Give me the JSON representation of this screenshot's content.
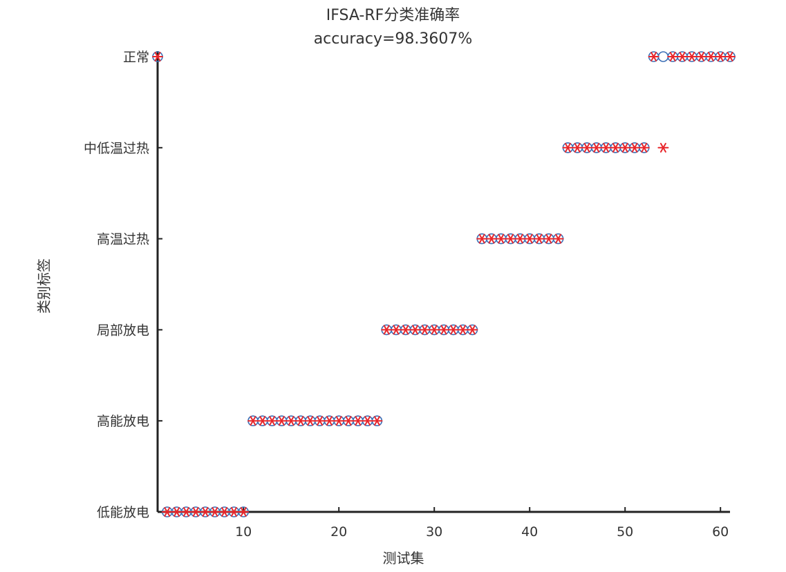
{
  "chart_data": {
    "type": "scatter",
    "title": "IFSA-RF分类准确率",
    "subtitle": "accuracy=98.3607%",
    "xlabel": "测试集",
    "ylabel": "类别标签",
    "xlim": [
      1,
      61
    ],
    "x_ticks": [
      10,
      20,
      30,
      40,
      50,
      60
    ],
    "y_categories": [
      "低能放电",
      "高能放电",
      "局部放电",
      "高温过热",
      "中低温过热",
      "正常"
    ],
    "grid": false,
    "series": [
      {
        "marker": "circle",
        "color": "#3b6fb6",
        "x": [
          1,
          2,
          3,
          4,
          5,
          6,
          7,
          8,
          9,
          10,
          11,
          12,
          13,
          14,
          15,
          16,
          17,
          18,
          19,
          20,
          21,
          22,
          23,
          24,
          25,
          26,
          27,
          28,
          29,
          30,
          31,
          32,
          33,
          34,
          35,
          36,
          37,
          38,
          39,
          40,
          41,
          42,
          43,
          44,
          45,
          46,
          47,
          48,
          49,
          50,
          51,
          52,
          53,
          54,
          55,
          56,
          57,
          58,
          59,
          60,
          61
        ],
        "y": [
          "正常",
          "低能放电",
          "低能放电",
          "低能放电",
          "低能放电",
          "低能放电",
          "低能放电",
          "低能放电",
          "低能放电",
          "低能放电",
          "高能放电",
          "高能放电",
          "高能放电",
          "高能放电",
          "高能放电",
          "高能放电",
          "高能放电",
          "高能放电",
          "高能放电",
          "高能放电",
          "高能放电",
          "高能放电",
          "高能放电",
          "高能放电",
          "局部放电",
          "局部放电",
          "局部放电",
          "局部放电",
          "局部放电",
          "局部放电",
          "局部放电",
          "局部放电",
          "局部放电",
          "局部放电",
          "高温过热",
          "高温过热",
          "高温过热",
          "高温过热",
          "高温过热",
          "高温过热",
          "高温过热",
          "高温过热",
          "高温过热",
          "中低温过热",
          "中低温过热",
          "中低温过热",
          "中低温过热",
          "中低温过热",
          "中低温过热",
          "中低温过热",
          "中低温过热",
          "中低温过热",
          "正常",
          "正常",
          "正常",
          "正常",
          "正常",
          "正常",
          "正常",
          "正常",
          "正常"
        ]
      },
      {
        "marker": "asterisk",
        "color": "#e8262b",
        "x": [
          1,
          2,
          3,
          4,
          5,
          6,
          7,
          8,
          9,
          10,
          11,
          12,
          13,
          14,
          15,
          16,
          17,
          18,
          19,
          20,
          21,
          22,
          23,
          24,
          25,
          26,
          27,
          28,
          29,
          30,
          31,
          32,
          33,
          34,
          35,
          36,
          37,
          38,
          39,
          40,
          41,
          42,
          43,
          44,
          45,
          46,
          47,
          48,
          49,
          50,
          51,
          52,
          53,
          54,
          55,
          56,
          57,
          58,
          59,
          60,
          61
        ],
        "y": [
          "正常",
          "低能放电",
          "低能放电",
          "低能放电",
          "低能放电",
          "低能放电",
          "低能放电",
          "低能放电",
          "低能放电",
          "低能放电",
          "高能放电",
          "高能放电",
          "高能放电",
          "高能放电",
          "高能放电",
          "高能放电",
          "高能放电",
          "高能放电",
          "高能放电",
          "高能放电",
          "高能放电",
          "高能放电",
          "高能放电",
          "高能放电",
          "局部放电",
          "局部放电",
          "局部放电",
          "局部放电",
          "局部放电",
          "局部放电",
          "局部放电",
          "局部放电",
          "局部放电",
          "局部放电",
          "高温过热",
          "高温过热",
          "高温过热",
          "高温过热",
          "高温过热",
          "高温过热",
          "高温过热",
          "高温过热",
          "高温过热",
          "中低温过热",
          "中低温过热",
          "中低温过热",
          "中低温过热",
          "中低温过热",
          "中低温过热",
          "中低温过热",
          "中低温过热",
          "中低温过热",
          "正常",
          "中低温过热",
          "正常",
          "正常",
          "正常",
          "正常",
          "正常",
          "正常",
          "正常"
        ]
      }
    ]
  }
}
